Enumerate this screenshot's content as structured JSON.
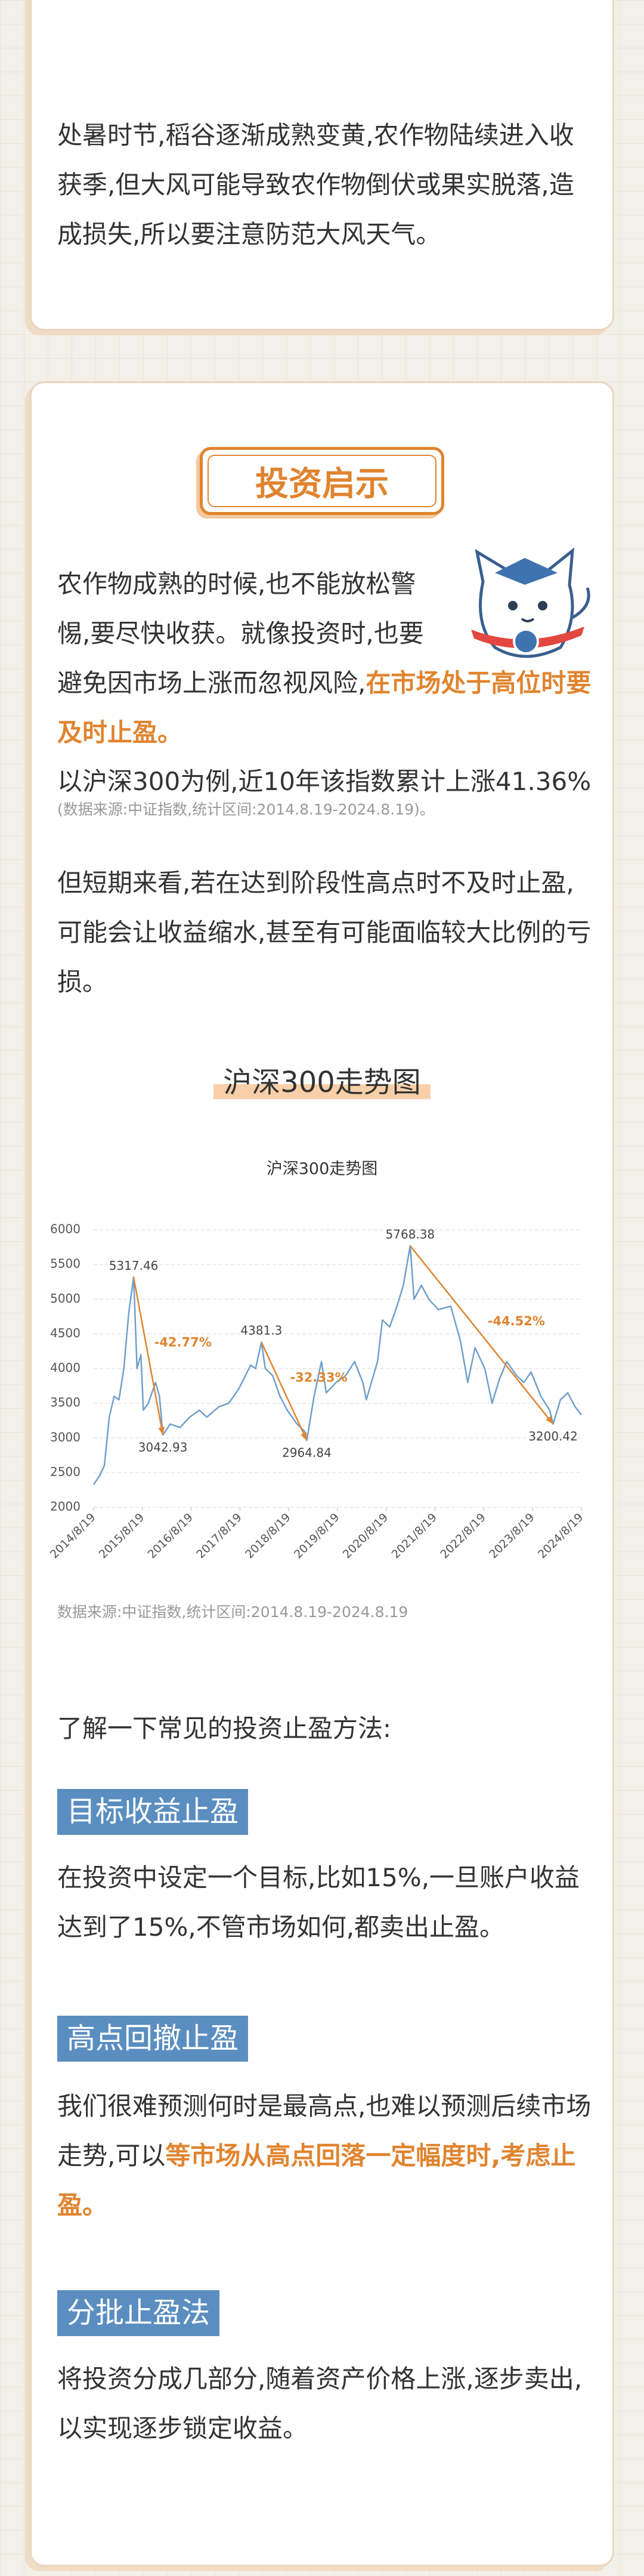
{
  "intro": {
    "text": "处暑时节,稻谷逐渐成熟变黄,农作物陆续进入收获季,但大风可能导致农作物倒伏或果实脱落,造成损失,所以要注意防范大风天气。"
  },
  "insight": {
    "badge": "投资启示",
    "paragraph1": [
      "农作物成熟的时候,也不能放松警惕,要尽快收获。就像投资时,也要避免因市场上涨而忽视风险,",
      "在市场处于高位时要及时止盈。"
    ],
    "example": "以沪深300为例,近10年该指数累计上涨41.36%",
    "example_source": "(数据来源:中证指数,统计区间:2014.8.19-2024.8.19)。",
    "paragraph2": "但短期来看,若在达到阶段性高点时不及时止盈,可能会让收益缩水,甚至有可能面临较大比例的亏损。",
    "chart_heading": "沪深300走势图"
  },
  "chart_data": {
    "type": "line",
    "title": "沪深300走势图",
    "source": "数据来源:中证指数,统计区间:2014.8.19-2024.8.19",
    "color": "#6f9fcc",
    "grid": true,
    "xlim": [
      2014.63,
      2024.63
    ],
    "xticks": [
      {
        "value": 2014.63,
        "label": "2014/8/19"
      },
      {
        "value": 2015.63,
        "label": "2015/8/19"
      },
      {
        "value": 2016.63,
        "label": "2016/8/19"
      },
      {
        "value": 2017.63,
        "label": "2017/8/19"
      },
      {
        "value": 2018.63,
        "label": "2018/8/19"
      },
      {
        "value": 2019.63,
        "label": "2019/8/19"
      },
      {
        "value": 2020.63,
        "label": "2020/8/19"
      },
      {
        "value": 2021.63,
        "label": "2021/8/19"
      },
      {
        "value": 2022.63,
        "label": "2022/8/19"
      },
      {
        "value": 2023.63,
        "label": "2023/8/19"
      },
      {
        "value": 2024.63,
        "label": "2024/8/19"
      }
    ],
    "ylim": [
      2000,
      6000
    ],
    "yticks": [
      2000,
      2500,
      3000,
      3500,
      4000,
      4500,
      5000,
      5500,
      6000
    ],
    "x": [
      2014.63,
      2014.75,
      2014.85,
      2014.95,
      2015.05,
      2015.15,
      2015.25,
      2015.35,
      2015.45,
      2015.52,
      2015.6,
      2015.65,
      2015.75,
      2015.9,
      2015.98,
      2016.05,
      2016.2,
      2016.4,
      2016.6,
      2016.8,
      2016.95,
      2017.2,
      2017.4,
      2017.6,
      2017.85,
      2017.95,
      2018.07,
      2018.15,
      2018.3,
      2018.45,
      2018.6,
      2018.8,
      2018.95,
      2019.0,
      2019.15,
      2019.3,
      2019.4,
      2019.6,
      2019.8,
      2019.98,
      2020.15,
      2020.22,
      2020.45,
      2020.55,
      2020.7,
      2020.85,
      2020.98,
      2021.12,
      2021.2,
      2021.35,
      2021.5,
      2021.7,
      2021.95,
      2022.15,
      2022.3,
      2022.45,
      2022.65,
      2022.8,
      2022.95,
      2023.1,
      2023.3,
      2023.45,
      2023.6,
      2023.8,
      2023.98,
      2024.05,
      2024.2,
      2024.35,
      2024.5,
      2024.63
    ],
    "values": [
      2330,
      2450,
      2600,
      3300,
      3600,
      3550,
      4000,
      4800,
      5317.46,
      4000,
      4200,
      3400,
      3500,
      3800,
      3600,
      3042.93,
      3200,
      3150,
      3300,
      3400,
      3300,
      3450,
      3500,
      3700,
      4050,
      4000,
      4381.3,
      4000,
      3900,
      3600,
      3400,
      3200,
      3100,
      2964.84,
      3600,
      4100,
      3650,
      3800,
      3900,
      4100,
      3800,
      3550,
      4100,
      4700,
      4600,
      4900,
      5200,
      5768.38,
      5000,
      5200,
      5000,
      4850,
      4900,
      4400,
      3800,
      4300,
      4000,
      3500,
      3850,
      4100,
      3900,
      3800,
      3950,
      3600,
      3400,
      3200.42,
      3550,
      3650,
      3450,
      3330
    ],
    "extremes": [
      {
        "x": 2015.45,
        "value": 5317.46,
        "label": "5317.46"
      },
      {
        "x": 2016.05,
        "value": 3042.93,
        "label": "3042.93"
      },
      {
        "x": 2018.07,
        "value": 4381.3,
        "label": "4381.3"
      },
      {
        "x": 2019.0,
        "value": 2964.84,
        "label": "2964.84"
      },
      {
        "x": 2021.12,
        "value": 5768.38,
        "label": "5768.38"
      },
      {
        "x": 2024.05,
        "value": 3200.42,
        "label": "3200.42"
      }
    ],
    "drawdowns": [
      {
        "label": "-42.77%",
        "x": [
          2015.45,
          2016.05
        ],
        "y": [
          5317.46,
          3042.93
        ]
      },
      {
        "label": "-32.33%",
        "x": [
          2018.07,
          2019.0
        ],
        "y": [
          4381.3,
          2964.84
        ]
      },
      {
        "label": "-44.52%",
        "x": [
          2021.12,
          2024.05
        ],
        "y": [
          5768.38,
          3200.42
        ]
      }
    ],
    "annotation_color": "#e0842f"
  },
  "methods": {
    "lead": "了解一下常见的投资止盈方法:",
    "items": [
      {
        "heading": "目标收益止盈",
        "text": [
          "在投资中设定一个目标,比如15%,一旦账户收益达到了15%,不管市场如何,都卖出止盈。"
        ]
      },
      {
        "heading": "高点回撤止盈",
        "text": [
          "我们很难预测何时是最高点,也难以预测后续市场走势,可以",
          "等市场从高点回落一定幅度时,考虑止盈。"
        ]
      },
      {
        "heading": "分批止盈法",
        "text": [
          "将投资分成几部分,随着资产价格上涨,逐步卖出,以实现逐步锁定收益。"
        ]
      }
    ]
  }
}
